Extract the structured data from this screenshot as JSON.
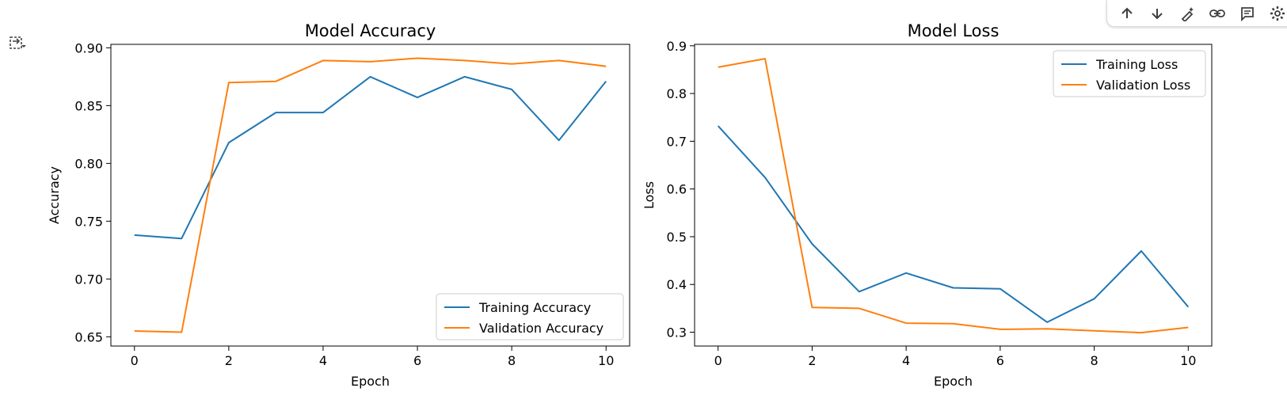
{
  "toolbar": {
    "buttons": [
      {
        "icon": "arrow-up-icon"
      },
      {
        "icon": "arrow-down-icon"
      },
      {
        "icon": "magic-edit-icon"
      },
      {
        "icon": "link-icon"
      },
      {
        "icon": "comment-icon"
      },
      {
        "icon": "gear-icon"
      }
    ]
  },
  "output": {
    "icon": "output-actions-icon"
  },
  "colors": {
    "training": "#1f77b4",
    "validation": "#ff7f0e"
  },
  "chart_data": [
    {
      "type": "line",
      "title": "Model Accuracy",
      "xlabel": "Epoch",
      "ylabel": "Accuracy",
      "x": [
        0,
        1,
        2,
        3,
        4,
        5,
        6,
        7,
        8,
        9,
        10
      ],
      "xlim": [
        -0.5,
        10.5
      ],
      "ylim": [
        0.642,
        0.903
      ],
      "xticks": [
        0,
        2,
        4,
        6,
        8,
        10
      ],
      "xtick_labels": [
        "0",
        "2",
        "4",
        "6",
        "8",
        "10"
      ],
      "yticks": [
        0.65,
        0.7,
        0.75,
        0.8,
        0.85,
        0.9
      ],
      "ytick_labels": [
        "0.65",
        "0.70",
        "0.75",
        "0.80",
        "0.85",
        "0.90"
      ],
      "legend_position": "lower-right",
      "grid": false,
      "series": [
        {
          "name": "Training Accuracy",
          "color": "#1f77b4",
          "values": [
            0.738,
            0.735,
            0.818,
            0.844,
            0.844,
            0.875,
            0.857,
            0.875,
            0.864,
            0.82,
            0.871
          ]
        },
        {
          "name": "Validation Accuracy",
          "color": "#ff7f0e",
          "values": [
            0.655,
            0.654,
            0.87,
            0.871,
            0.889,
            0.888,
            0.891,
            0.889,
            0.886,
            0.889,
            0.884
          ]
        }
      ]
    },
    {
      "type": "line",
      "title": "Model Loss",
      "xlabel": "Epoch",
      "ylabel": "Loss",
      "x": [
        0,
        1,
        2,
        3,
        4,
        5,
        6,
        7,
        8,
        9,
        10
      ],
      "xlim": [
        -0.5,
        10.5
      ],
      "ylim": [
        0.271,
        0.903
      ],
      "xticks": [
        0,
        2,
        4,
        6,
        8,
        10
      ],
      "xtick_labels": [
        "0",
        "2",
        "4",
        "6",
        "8",
        "10"
      ],
      "yticks": [
        0.3,
        0.4,
        0.5,
        0.6,
        0.7,
        0.8,
        0.9
      ],
      "ytick_labels": [
        "0.3",
        "0.4",
        "0.5",
        "0.6",
        "0.7",
        "0.8",
        "0.9"
      ],
      "legend_position": "upper-right",
      "grid": false,
      "series": [
        {
          "name": "Training Loss",
          "color": "#1f77b4",
          "values": [
            0.732,
            0.624,
            0.485,
            0.385,
            0.424,
            0.393,
            0.391,
            0.321,
            0.37,
            0.47,
            0.353
          ]
        },
        {
          "name": "Validation Loss",
          "color": "#ff7f0e",
          "values": [
            0.855,
            0.873,
            0.352,
            0.35,
            0.319,
            0.318,
            0.306,
            0.307,
            0.303,
            0.299,
            0.31
          ]
        }
      ]
    }
  ]
}
